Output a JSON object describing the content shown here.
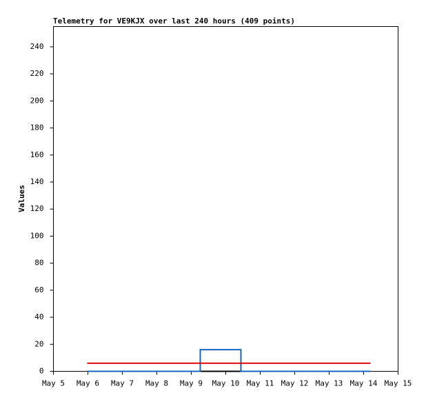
{
  "chart_data": {
    "type": "line",
    "title": "Telemetry for VE9KJX over last 240 hours (409 points)",
    "y_label": "Values",
    "xlim": [
      5,
      15
    ],
    "xticks": [
      {
        "value": 5,
        "label": "May 5"
      },
      {
        "value": 6,
        "label": "May 6"
      },
      {
        "value": 7,
        "label": "May 7"
      },
      {
        "value": 8,
        "label": "May 8"
      },
      {
        "value": 9,
        "label": "May 9"
      },
      {
        "value": 10,
        "label": "May 10"
      },
      {
        "value": 11,
        "label": "May 11"
      },
      {
        "value": 12,
        "label": "May 12"
      },
      {
        "value": 13,
        "label": "May 13"
      },
      {
        "value": 14,
        "label": "May 14"
      },
      {
        "value": 15,
        "label": "May 15"
      }
    ],
    "ylim": [
      0,
      255
    ],
    "yticks": [
      0,
      20,
      40,
      60,
      80,
      100,
      120,
      140,
      160,
      180,
      200,
      220,
      240
    ],
    "series": [
      {
        "color": "#000000",
        "x": [
          5.98,
          14.2
        ],
        "values": [
          0,
          0
        ]
      },
      {
        "color": "#1565c0",
        "x": [
          5.98,
          9.26,
          9.26,
          10.44,
          10.44,
          14.2
        ],
        "values": [
          0,
          0,
          16,
          16,
          0,
          0
        ]
      },
      {
        "color": "#e00000",
        "x": [
          5.98,
          14.2
        ],
        "values": [
          6,
          6
        ]
      }
    ]
  }
}
